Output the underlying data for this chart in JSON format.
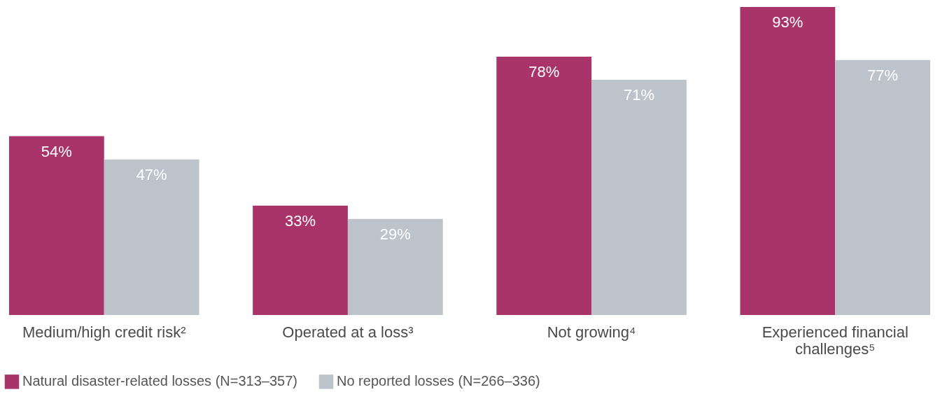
{
  "chart_data": {
    "type": "bar",
    "categories": [
      "Medium/high credit risk²",
      "Operated at a loss³",
      "Not growing⁴",
      "Experienced financial challenges⁵"
    ],
    "series": [
      {
        "name": "Natural disaster-related losses (N=313–357)",
        "color": "#a8346a",
        "values": [
          54,
          33,
          78,
          93
        ],
        "value_labels": [
          "54%",
          "33%",
          "78%",
          "93%"
        ]
      },
      {
        "name": "No reported losses (N=266–336)",
        "color": "#bcc3cb",
        "values": [
          47,
          29,
          71,
          77
        ],
        "value_labels": [
          "47%",
          "29%",
          "71%",
          "77%"
        ]
      }
    ],
    "legend": "bottom left",
    "tick_labels": "x"
  }
}
